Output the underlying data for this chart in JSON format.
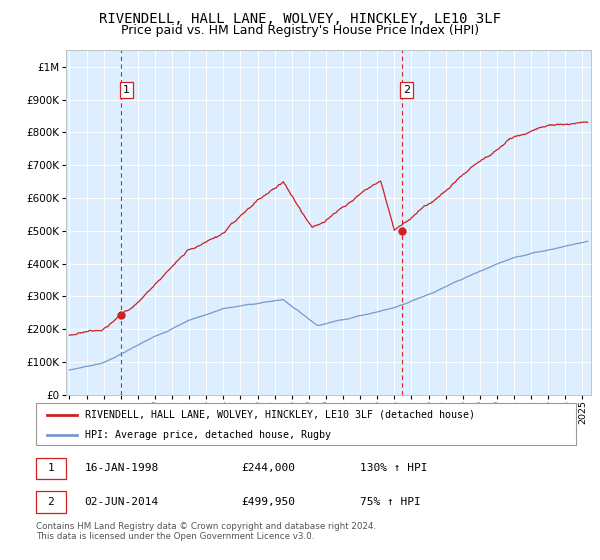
{
  "title": "RIVENDELL, HALL LANE, WOLVEY, HINCKLEY, LE10 3LF",
  "subtitle": "Price paid vs. HM Land Registry's House Price Index (HPI)",
  "title_fontsize": 10,
  "subtitle_fontsize": 9,
  "bg_color": "#ddeeff",
  "grid_color": "#ffffff",
  "sale1_date": 1998.04,
  "sale1_price": 244000,
  "sale1_label": "1",
  "sale2_date": 2014.42,
  "sale2_price": 499950,
  "sale2_label": "2",
  "red_line_color": "#cc2222",
  "blue_line_color": "#7799cc",
  "dashed_line_color": "#dd2222",
  "point_color": "#cc2222",
  "legend_red_label": "RIVENDELL, HALL LANE, WOLVEY, HINCKLEY, LE10 3LF (detached house)",
  "legend_blue_label": "HPI: Average price, detached house, Rugby",
  "table_row1": [
    "1",
    "16-JAN-1998",
    "£244,000",
    "130% ↑ HPI"
  ],
  "table_row2": [
    "2",
    "02-JUN-2014",
    "£499,950",
    "75% ↑ HPI"
  ],
  "footnote": "Contains HM Land Registry data © Crown copyright and database right 2024.\nThis data is licensed under the Open Government Licence v3.0.",
  "ylim_max": 1050000,
  "xlim_start": 1994.8,
  "xlim_end": 2025.5
}
